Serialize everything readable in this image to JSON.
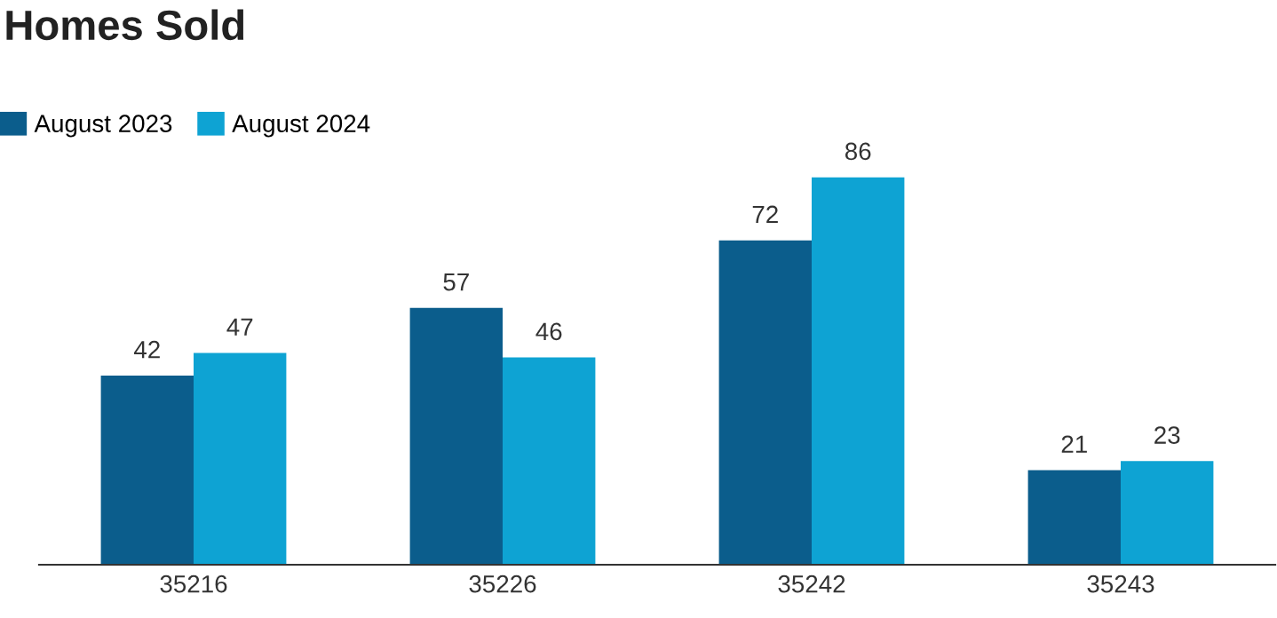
{
  "chart_data": {
    "type": "bar",
    "title": "Homes Sold",
    "categories": [
      "35216",
      "35226",
      "35242",
      "35243"
    ],
    "series": [
      {
        "name": "August 2023",
        "color": "#0b5d8c",
        "values": [
          42,
          57,
          72,
          21
        ]
      },
      {
        "name": "August 2024",
        "color": "#0ea3d3",
        "values": [
          47,
          46,
          86,
          23
        ]
      }
    ],
    "data_labels": true,
    "legend": "top left",
    "grid": false,
    "tick_labels": "x"
  }
}
